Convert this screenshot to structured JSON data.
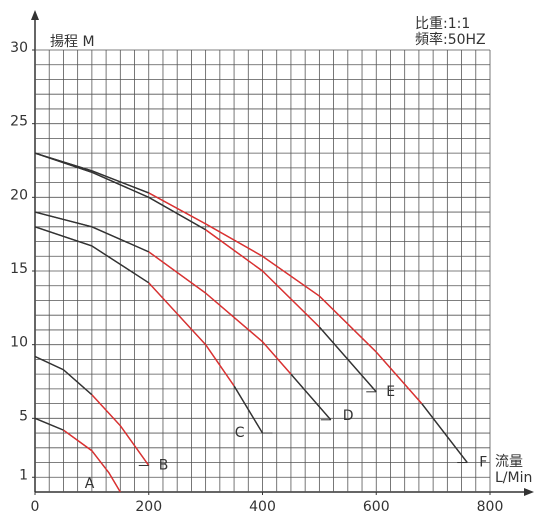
{
  "chart_data": {
    "type": "line",
    "y_label": "揚程 M",
    "x_label_top": "流量",
    "x_label_bottom": "L/Min",
    "note_line1": "比重:1:1",
    "note_line2": "頻率:50HZ",
    "xlim": [
      0,
      800
    ],
    "xticks": [
      0,
      200,
      400,
      600,
      800
    ],
    "ylim": [
      0,
      30
    ],
    "yticks": [
      1,
      5,
      10,
      15,
      20,
      25,
      30
    ],
    "grid": true,
    "series": [
      {
        "name": "A",
        "color": "#333333",
        "x": [
          0,
          50,
          100,
          130,
          150
        ],
        "values": [
          5,
          4.2,
          2.8,
          1.3,
          0
        ],
        "segment_colors": [
          "#333333",
          "#e03030",
          "#e03030",
          "#e03030"
        ]
      },
      {
        "name": "B",
        "color": "#333333",
        "x": [
          0,
          50,
          100,
          150,
          200
        ],
        "values": [
          9.2,
          8.3,
          6.6,
          4.5,
          1.8
        ],
        "segment_colors": [
          "#333333",
          "#333333",
          "#e03030",
          "#e03030"
        ]
      },
      {
        "name": "C",
        "color": "#333333",
        "x": [
          0,
          100,
          200,
          300,
          350,
          400
        ],
        "values": [
          18,
          16.7,
          14.2,
          10,
          7.2,
          4
        ],
        "segment_colors": [
          "#333333",
          "#333333",
          "#e03030",
          "#e03030",
          "#333333"
        ]
      },
      {
        "name": "D",
        "color": "#333333",
        "x": [
          0,
          100,
          200,
          300,
          400,
          450,
          520
        ],
        "values": [
          19,
          18,
          16.3,
          13.5,
          10.2,
          8,
          4.9
        ],
        "segment_colors": [
          "#333333",
          "#333333",
          "#e03030",
          "#e03030",
          "#e03030",
          "#333333"
        ]
      },
      {
        "name": "E",
        "color": "#333333",
        "x": [
          0,
          100,
          200,
          300,
          400,
          500,
          600
        ],
        "values": [
          23,
          21.7,
          20,
          17.8,
          15,
          11.2,
          6.8
        ],
        "segment_colors": [
          "#333333",
          "#333333",
          "#333333",
          "#e03030",
          "#e03030",
          "#333333"
        ]
      },
      {
        "name": "F",
        "color": "#333333",
        "x": [
          0,
          100,
          200,
          300,
          400,
          500,
          600,
          680,
          760
        ],
        "values": [
          23,
          21.8,
          20.3,
          18.2,
          16,
          13.3,
          9.5,
          6,
          2
        ],
        "segment_colors": [
          "#333333",
          "#333333",
          "#e03030",
          "#e03030",
          "#e03030",
          "#e03030",
          "#e03030",
          "#333333"
        ]
      }
    ]
  }
}
